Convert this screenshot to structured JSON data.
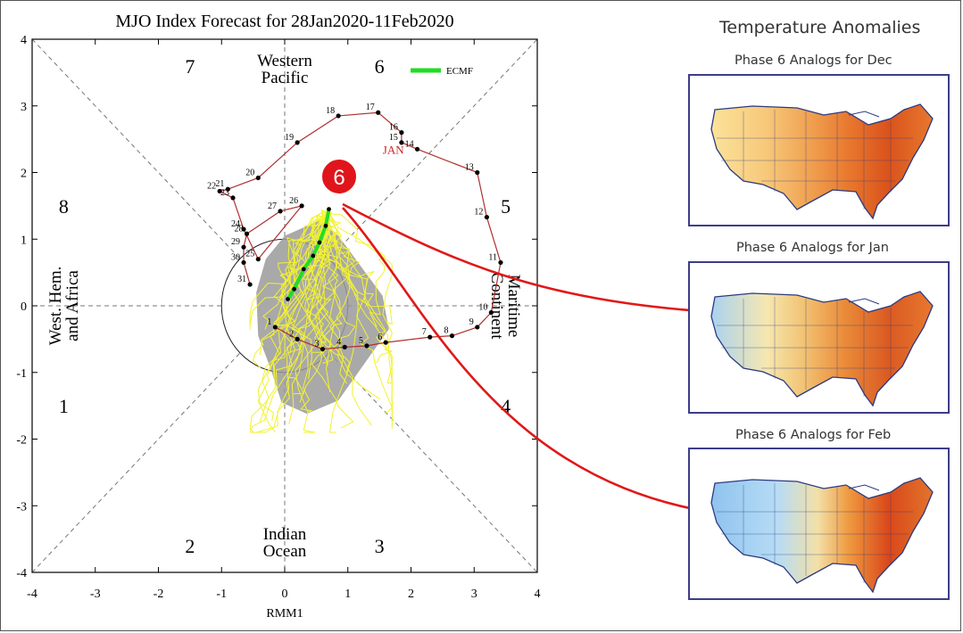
{
  "page": {
    "right_panel_title": "Temperature Anomalies"
  },
  "maps": [
    {
      "caption": "Phase 6 Analogs for  Dec",
      "palette": "warm-east"
    },
    {
      "caption": "Phase 6 Analogs for Jan",
      "palette": "warm-east-cool-west"
    },
    {
      "caption": "Phase 6 Analogs for  Feb",
      "palette": "cold-west-warm-east"
    }
  ],
  "callout": {
    "label": "6",
    "color": "#e0151b"
  },
  "arrow_color": "#e01818",
  "chart_data": {
    "type": "scatter",
    "title": "MJO Index Forecast for 28Jan2020-11Feb2020",
    "xlabel": "RMM1",
    "ylabel": "",
    "xlim": [
      -4,
      4
    ],
    "ylim": [
      -4,
      4
    ],
    "xticks": [
      "-4",
      "-3",
      "-2",
      "-1",
      "0",
      "1",
      "2",
      "3",
      "4"
    ],
    "yticks": [
      "-4",
      "-3",
      "-2",
      "-1",
      "0",
      "1",
      "2",
      "3",
      "4"
    ],
    "grid": "diagonal phase dividers, dashed",
    "legend": {
      "label": "ECMF",
      "color": "#22dd22",
      "placement": "top-right"
    },
    "phase_numbers": [
      {
        "label": "7",
        "x": -1.5,
        "y": 3.6
      },
      {
        "label": "6",
        "x": 1.5,
        "y": 3.6
      },
      {
        "label": "8",
        "x": -3.5,
        "y": 1.5
      },
      {
        "label": "5",
        "x": 3.5,
        "y": 1.5
      },
      {
        "label": "1",
        "x": -3.5,
        "y": -1.5
      },
      {
        "label": "4",
        "x": 3.5,
        "y": -1.5
      },
      {
        "label": "2",
        "x": -1.5,
        "y": -3.6
      },
      {
        "label": "3",
        "x": 1.5,
        "y": -3.6
      }
    ],
    "region_labels": [
      {
        "lines": [
          "Western",
          "Pacific"
        ],
        "x": 0.0,
        "y": 3.55
      },
      {
        "lines": [
          "Indian",
          "Ocean"
        ],
        "x": 0.0,
        "y": -3.55
      },
      {
        "lines": [
          "West. Hem.",
          "and Africa"
        ],
        "x": -3.5,
        "y": 0.0,
        "rotate": -90
      },
      {
        "lines": [
          "Maritime",
          "Continent"
        ],
        "x": 3.5,
        "y": 0.0,
        "rotate": 90
      }
    ],
    "month_label": {
      "text": "JAN",
      "x": 1.72,
      "y": 2.28,
      "color": "#cc2222"
    },
    "observed_series": {
      "name": "observed",
      "color": "#b03030",
      "points": [
        {
          "day": "1",
          "x": -0.15,
          "y": -0.32
        },
        {
          "day": "2",
          "x": 0.2,
          "y": -0.5
        },
        {
          "day": "3",
          "x": 0.6,
          "y": -0.65
        },
        {
          "day": "4",
          "x": 0.95,
          "y": -0.62
        },
        {
          "day": "5",
          "x": 1.3,
          "y": -0.6
        },
        {
          "day": "6",
          "x": 1.6,
          "y": -0.55
        },
        {
          "day": "7",
          "x": 2.3,
          "y": -0.47
        },
        {
          "day": "8",
          "x": 2.65,
          "y": -0.45
        },
        {
          "day": "9",
          "x": 3.05,
          "y": -0.32
        },
        {
          "day": "10",
          "x": 3.27,
          "y": -0.1
        },
        {
          "day": "11",
          "x": 3.42,
          "y": 0.65
        },
        {
          "day": "12",
          "x": 3.2,
          "y": 1.33
        },
        {
          "day": "13",
          "x": 3.05,
          "y": 2.0
        },
        {
          "day": "14",
          "x": 2.1,
          "y": 2.35
        },
        {
          "day": "15",
          "x": 1.85,
          "y": 2.45
        },
        {
          "day": "16",
          "x": 1.85,
          "y": 2.6
        },
        {
          "day": "17",
          "x": 1.48,
          "y": 2.9
        },
        {
          "day": "18",
          "x": 0.85,
          "y": 2.85
        },
        {
          "day": "19",
          "x": 0.2,
          "y": 2.45
        },
        {
          "day": "20",
          "x": -0.42,
          "y": 1.92
        },
        {
          "day": "21",
          "x": -0.9,
          "y": 1.75
        },
        {
          "day": "22",
          "x": -1.03,
          "y": 1.72
        },
        {
          "day": "23",
          "x": -0.82,
          "y": 1.62
        },
        {
          "day": "24",
          "x": -0.65,
          "y": 1.15
        },
        {
          "day": "25",
          "x": -0.42,
          "y": 0.7
        },
        {
          "day": "26",
          "x": 0.27,
          "y": 1.5
        },
        {
          "day": "27",
          "x": -0.07,
          "y": 1.42
        },
        {
          "day": "28",
          "x": -0.6,
          "y": 1.08
        },
        {
          "day": "29",
          "x": -0.65,
          "y": 0.88
        },
        {
          "day": "30",
          "x": -0.65,
          "y": 0.65
        },
        {
          "day": "31",
          "x": -0.55,
          "y": 0.32
        }
      ]
    },
    "forecast_series": {
      "name": "ECMF",
      "color": "#22dd22",
      "points": [
        {
          "x": 0.7,
          "y": 1.45
        },
        {
          "x": 0.65,
          "y": 1.2
        },
        {
          "x": 0.55,
          "y": 0.95
        },
        {
          "x": 0.45,
          "y": 0.75
        },
        {
          "x": 0.3,
          "y": 0.55
        },
        {
          "x": 0.15,
          "y": 0.25
        },
        {
          "x": 0.05,
          "y": 0.1
        }
      ]
    },
    "ensemble_members_color": "#f2f230",
    "spread_shade_color": "#9a9a9a",
    "unit_circle": {
      "radius": 1
    }
  }
}
